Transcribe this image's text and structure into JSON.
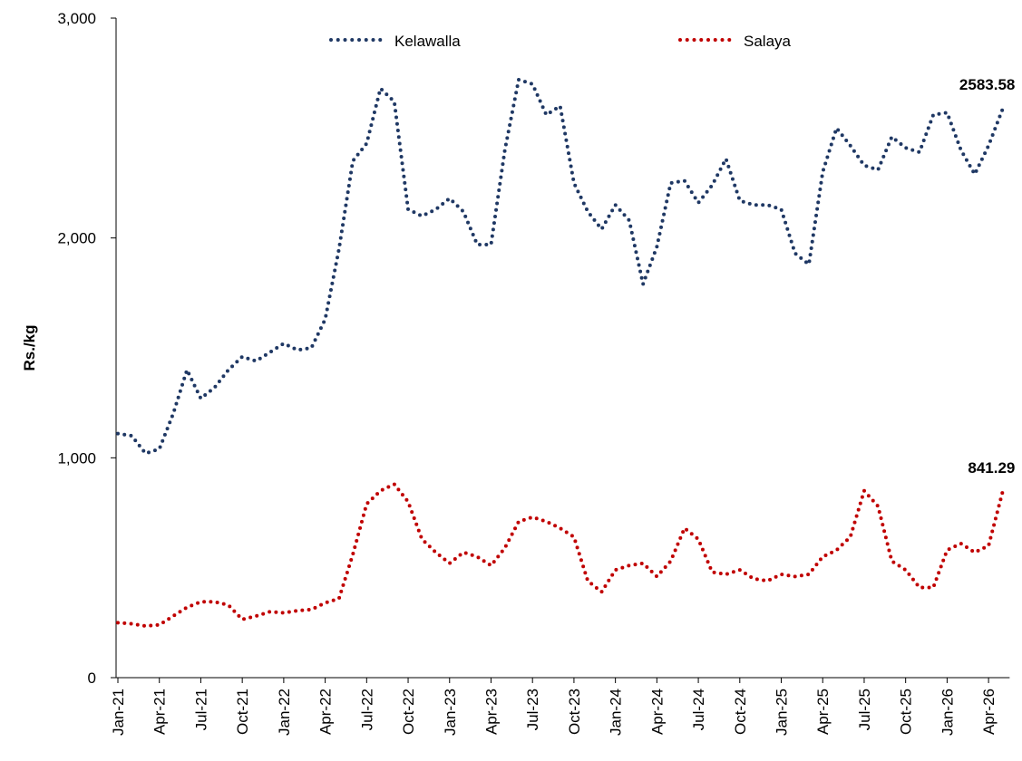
{
  "chart_data": {
    "type": "line",
    "y_label": "Rs./kg",
    "categories": [
      "Jan-21",
      null,
      null,
      "Apr-21",
      null,
      null,
      "Jul-21",
      null,
      null,
      "Oct-21",
      null,
      null,
      "Jan-22",
      null,
      null,
      "Apr-22",
      null,
      null,
      "Jul-22",
      null,
      null,
      "Oct-22",
      null,
      null,
      "Jan-23",
      null,
      null,
      "Apr-23",
      null,
      null,
      "Jul-23",
      null,
      null,
      "Oct-23",
      null,
      null,
      "Jan-24",
      null,
      null,
      "Apr-24",
      null,
      null,
      "Jul-24",
      null,
      null,
      "Oct-24",
      null,
      null,
      "Jan-25",
      null,
      null,
      "Apr-25",
      null,
      null,
      "Jul-25",
      null,
      null,
      "Oct-25",
      null,
      null,
      "Jan-26",
      null,
      null,
      "Apr-26",
      null
    ],
    "series": [
      {
        "name": "Kelawalla",
        "color": "#1f3864",
        "values": [
          1110,
          1100,
          1020,
          1040,
          1200,
          1400,
          1270,
          1320,
          1400,
          1460,
          1440,
          1480,
          1520,
          1490,
          1500,
          1630,
          1950,
          2350,
          2430,
          2680,
          2620,
          2130,
          2100,
          2130,
          2180,
          2120,
          1970,
          1970,
          2400,
          2720,
          2700,
          2560,
          2600,
          2250,
          2120,
          2040,
          2150,
          2080,
          1790,
          1960,
          2250,
          2260,
          2160,
          2240,
          2360,
          2170,
          2150,
          2150,
          2130,
          1930,
          1880,
          2300,
          2500,
          2420,
          2330,
          2310,
          2460,
          2410,
          2390,
          2560,
          2570,
          2400,
          2290,
          2420,
          2583.58
        ]
      },
      {
        "name": "Salaya",
        "color": "#c00000",
        "values": [
          250,
          245,
          235,
          240,
          280,
          320,
          345,
          345,
          330,
          265,
          280,
          300,
          295,
          305,
          310,
          340,
          360,
          560,
          790,
          850,
          880,
          800,
          630,
          570,
          520,
          570,
          550,
          510,
          590,
          710,
          730,
          710,
          680,
          640,
          440,
          390,
          490,
          510,
          520,
          460,
          530,
          680,
          630,
          480,
          470,
          490,
          450,
          440,
          470,
          460,
          470,
          550,
          580,
          640,
          850,
          780,
          530,
          490,
          410,
          410,
          580,
          610,
          570,
          600,
          841.29
        ]
      }
    ],
    "ylim": [
      0,
      3000
    ],
    "yticks": [
      0,
      {
        "value": 1000,
        "label": "1,000"
      },
      {
        "value": 2000,
        "label": "2,000"
      },
      {
        "value": 3000,
        "label": "3,000"
      }
    ]
  }
}
